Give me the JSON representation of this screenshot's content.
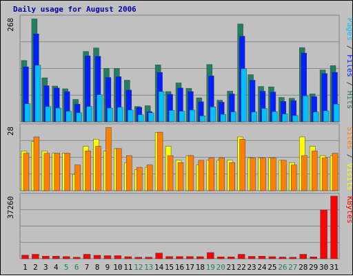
{
  "chart_data": {
    "type": "bar",
    "title": "Daily usage for August 2006",
    "days": [
      "1",
      "2",
      "3",
      "4",
      "5",
      "6",
      "7",
      "8",
      "9",
      "10",
      "11",
      "12",
      "13",
      "14",
      "15",
      "16",
      "17",
      "18",
      "19",
      "20",
      "21",
      "22",
      "23",
      "24",
      "25",
      "26",
      "27",
      "28",
      "29",
      "30",
      "31"
    ],
    "weekend_days": [
      "5",
      "6",
      "12",
      "13",
      "19",
      "20",
      "26",
      "27"
    ],
    "panels": [
      {
        "id": "hits",
        "max_label": "268",
        "ylim": [
          0,
          268
        ],
        "right_label_parts": [
          {
            "text": "Pages",
            "color": "#00c0ff"
          },
          {
            "text": " / ",
            "color": "#404040"
          },
          {
            "text": "Files",
            "color": "#0020ff"
          },
          {
            "text": " / ",
            "color": "#404040"
          },
          {
            "text": "Hits",
            "color": "#208060"
          }
        ],
        "series": [
          {
            "name": "Hits",
            "color": "#208060",
            "values": [
              156,
              262,
              112,
              91,
              84,
              57,
              179,
              188,
              136,
              136,
              106,
              39,
              41,
              145,
              77,
              99,
              85,
              61,
              146,
              55,
              78,
              249,
              120,
              90,
              89,
              62,
              60,
              189,
              71,
              132,
              143
            ]
          },
          {
            "name": "Files",
            "color": "#0020ff",
            "values": [
              140,
              224,
              92,
              86,
              77,
              45,
              168,
              167,
              113,
              115,
              81,
              37,
              26,
              126,
              70,
              86,
              77,
              51,
              117,
              50,
              71,
              218,
              106,
              78,
              76,
              52,
              54,
              175,
              64,
              123,
              126
            ]
          },
          {
            "name": "Pages",
            "color": "#00c0ff",
            "values": [
              46,
              144,
              39,
              35,
              27,
              23,
              39,
              69,
              35,
              37,
              30,
              18,
              23,
              77,
              29,
              27,
              30,
              15,
              38,
              19,
              25,
              135,
              25,
              34,
              26,
              20,
              16,
              66,
              25,
              28,
              45
            ]
          }
        ]
      },
      {
        "id": "visits",
        "max_label": "28",
        "ylim": [
          0,
          28
        ],
        "right_label_parts": [
          {
            "text": "Sites",
            "color": "#ff8000"
          },
          {
            "text": " / ",
            "color": "#404040"
          },
          {
            "text": "Visits",
            "color": "#ffff00"
          }
        ],
        "series": [
          {
            "name": "Visits",
            "color": "#ffff00",
            "values": [
              17,
              21,
              17,
              16,
              16,
              7,
              19,
              22,
              17,
              18,
              12,
              9,
              10,
              25,
              19,
              13,
              15,
              11,
              13,
              13,
              13,
              23,
              14,
              14,
              14,
              13,
              12,
              23,
              19,
              15,
              15
            ]
          },
          {
            "name": "Sites",
            "color": "#ff8000",
            "values": [
              16,
              23,
              16,
              16,
              16,
              11,
              17,
              19,
              27,
              18,
              15,
              10,
              11,
              25,
              15,
              12,
              15,
              13,
              14,
              14,
              12,
              22,
              14,
              14,
              14,
              13,
              11,
              15,
              17,
              14,
              16
            ]
          }
        ]
      },
      {
        "id": "kbytes",
        "max_label": "37260",
        "ylim": [
          0,
          37260
        ],
        "right_label_parts": [
          {
            "text": "KBytes",
            "color": "#ff0000"
          }
        ],
        "series": [
          {
            "name": "KBytes",
            "color": "#ff0000",
            "values": [
              2100,
              2600,
              1500,
              1500,
              1300,
              900,
              2600,
              2000,
              1800,
              1800,
              1200,
              900,
              900,
              3300,
              1300,
              1300,
              1300,
              1200,
              3600,
              1100,
              1100,
              2600,
              1400,
              1500,
              1200,
              1000,
              900,
              2600,
              1100,
              28400,
              36500
            ]
          }
        ]
      }
    ]
  }
}
